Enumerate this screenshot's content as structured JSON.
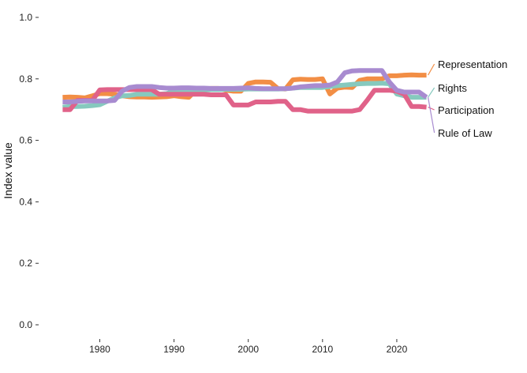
{
  "chart_data": {
    "type": "line",
    "title": "",
    "xlabel": "",
    "ylabel": "Index value",
    "xlim": [
      1974,
      2025
    ],
    "ylim": [
      0,
      1
    ],
    "x_ticks": [
      1980,
      1990,
      2000,
      2010,
      2020
    ],
    "x_tick_labels": [
      "1980",
      "1990",
      "2000",
      "2010",
      "2020"
    ],
    "y_ticks": [
      0,
      0.2,
      0.4,
      0.6,
      0.8,
      1.0
    ],
    "y_tick_labels": [
      "0.0",
      "0.2",
      "0.4",
      "0.6",
      "0.8",
      "1.0"
    ],
    "grid": false,
    "legend": "direct labels at right end of lines",
    "x": [
      1975,
      1976,
      1977,
      1978,
      1979,
      1980,
      1981,
      1982,
      1983,
      1984,
      1985,
      1986,
      1987,
      1988,
      1989,
      1990,
      1991,
      1992,
      1993,
      1994,
      1995,
      1996,
      1997,
      1998,
      1999,
      2000,
      2001,
      2002,
      2003,
      2004,
      2005,
      2006,
      2007,
      2008,
      2009,
      2010,
      2011,
      2012,
      2013,
      2014,
      2015,
      2016,
      2017,
      2018,
      2019,
      2020,
      2021,
      2022,
      2023,
      2024
    ],
    "series": [
      {
        "name": "Representation",
        "color": "#f28e45",
        "values": [
          0.74,
          0.741,
          0.74,
          0.738,
          0.745,
          0.752,
          0.752,
          0.75,
          0.745,
          0.742,
          0.741,
          0.741,
          0.74,
          0.741,
          0.742,
          0.745,
          0.742,
          0.74,
          0.765,
          0.766,
          0.769,
          0.769,
          0.763,
          0.76,
          0.76,
          0.785,
          0.79,
          0.79,
          0.789,
          0.768,
          0.767,
          0.797,
          0.799,
          0.798,
          0.798,
          0.8,
          0.751,
          0.77,
          0.773,
          0.772,
          0.795,
          0.8,
          0.8,
          0.8,
          0.81,
          0.81,
          0.812,
          0.813,
          0.812,
          0.812
        ]
      },
      {
        "name": "Rights",
        "color": "#86c9be",
        "values": [
          0.708,
          0.71,
          0.71,
          0.711,
          0.713,
          0.716,
          0.727,
          0.738,
          0.745,
          0.746,
          0.75,
          0.75,
          0.75,
          0.75,
          0.752,
          0.76,
          0.762,
          0.763,
          0.763,
          0.764,
          0.765,
          0.765,
          0.766,
          0.766,
          0.766,
          0.767,
          0.767,
          0.767,
          0.767,
          0.767,
          0.768,
          0.77,
          0.772,
          0.772,
          0.772,
          0.772,
          0.775,
          0.778,
          0.78,
          0.782,
          0.784,
          0.785,
          0.785,
          0.786,
          0.784,
          0.751,
          0.745,
          0.74,
          0.74,
          0.74
        ]
      },
      {
        "name": "Participation",
        "color": "#e06289",
        "values": [
          0.7,
          0.7,
          0.73,
          0.73,
          0.73,
          0.764,
          0.765,
          0.765,
          0.765,
          0.765,
          0.765,
          0.765,
          0.765,
          0.75,
          0.75,
          0.75,
          0.75,
          0.75,
          0.75,
          0.75,
          0.748,
          0.748,
          0.748,
          0.715,
          0.715,
          0.715,
          0.725,
          0.725,
          0.725,
          0.727,
          0.727,
          0.7,
          0.7,
          0.695,
          0.695,
          0.695,
          0.695,
          0.695,
          0.695,
          0.695,
          0.7,
          0.73,
          0.763,
          0.763,
          0.763,
          0.76,
          0.75,
          0.71,
          0.71,
          0.708
        ]
      },
      {
        "name": "Rule of Law",
        "color": "#a88bd0",
        "values": [
          0.725,
          0.725,
          0.727,
          0.728,
          0.728,
          0.728,
          0.728,
          0.73,
          0.76,
          0.772,
          0.775,
          0.775,
          0.775,
          0.772,
          0.77,
          0.77,
          0.771,
          0.771,
          0.77,
          0.77,
          0.769,
          0.769,
          0.769,
          0.769,
          0.77,
          0.771,
          0.769,
          0.768,
          0.768,
          0.768,
          0.768,
          0.77,
          0.774,
          0.776,
          0.778,
          0.778,
          0.78,
          0.79,
          0.82,
          0.826,
          0.827,
          0.827,
          0.827,
          0.827,
          0.79,
          0.763,
          0.757,
          0.757,
          0.757,
          0.74
        ]
      }
    ]
  }
}
